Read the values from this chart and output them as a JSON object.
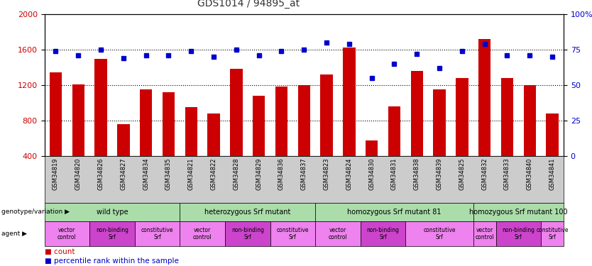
{
  "title": "GDS1014 / 94895_at",
  "samples": [
    "GSM34819",
    "GSM34820",
    "GSM34826",
    "GSM34827",
    "GSM34834",
    "GSM34835",
    "GSM34821",
    "GSM34822",
    "GSM34828",
    "GSM34829",
    "GSM34836",
    "GSM34837",
    "GSM34823",
    "GSM34824",
    "GSM34830",
    "GSM34831",
    "GSM34838",
    "GSM34839",
    "GSM34825",
    "GSM34832",
    "GSM34833",
    "GSM34840",
    "GSM34841"
  ],
  "counts": [
    1340,
    1210,
    1490,
    760,
    1150,
    1120,
    950,
    880,
    1380,
    1080,
    1180,
    1200,
    1320,
    1620,
    575,
    960,
    1360,
    1150,
    1280,
    1720,
    1280,
    1200,
    880
  ],
  "percentiles": [
    74,
    71,
    75,
    69,
    71,
    71,
    74,
    70,
    75,
    71,
    74,
    75,
    80,
    79,
    55,
    65,
    72,
    62,
    74,
    79,
    71,
    71,
    70
  ],
  "bar_color": "#cc0000",
  "dot_color": "#0000cc",
  "ylim_left": [
    400,
    2000
  ],
  "ylim_right": [
    0,
    100
  ],
  "yticks_left": [
    400,
    800,
    1200,
    1600,
    2000
  ],
  "yticks_right": [
    0,
    25,
    50,
    75,
    100
  ],
  "grid_values": [
    800,
    1200,
    1600
  ],
  "bar_width": 0.55,
  "tick_bg_color": "#cccccc",
  "geno_color": "#aaddaa",
  "geno_groups": [
    {
      "label": "wild type",
      "start": 0,
      "end": 5
    },
    {
      "label": "heterozygous Srf mutant",
      "start": 6,
      "end": 11
    },
    {
      "label": "homozygous Srf mutant 81",
      "start": 12,
      "end": 18
    },
    {
      "label": "homozygous Srf mutant 100",
      "start": 19,
      "end": 22
    }
  ],
  "agent_groups": [
    {
      "label": "vector\ncontrol",
      "start": 0,
      "end": 1,
      "color": "#ee82ee"
    },
    {
      "label": "non-binding\nSrf",
      "start": 2,
      "end": 3,
      "color": "#cc44cc"
    },
    {
      "label": "constitutive\nSrf",
      "start": 4,
      "end": 5,
      "color": "#ee82ee"
    },
    {
      "label": "vector\ncontrol",
      "start": 6,
      "end": 7,
      "color": "#ee82ee"
    },
    {
      "label": "non-binding\nSrf",
      "start": 8,
      "end": 9,
      "color": "#cc44cc"
    },
    {
      "label": "constitutive\nSrf",
      "start": 10,
      "end": 11,
      "color": "#ee82ee"
    },
    {
      "label": "vector\ncontrol",
      "start": 12,
      "end": 13,
      "color": "#ee82ee"
    },
    {
      "label": "non-binding\nSrf",
      "start": 14,
      "end": 15,
      "color": "#cc44cc"
    },
    {
      "label": "constitutive\nSrf",
      "start": 16,
      "end": 18,
      "color": "#ee82ee"
    },
    {
      "label": "vector\ncontrol",
      "start": 19,
      "end": 19,
      "color": "#ee82ee"
    },
    {
      "label": "non-binding\nSrf",
      "start": 20,
      "end": 21,
      "color": "#cc44cc"
    },
    {
      "label": "constitutive\nSrf",
      "start": 22,
      "end": 22,
      "color": "#ee82ee"
    }
  ],
  "label_left_color": "#cc0000",
  "label_right_color": "#0000cc",
  "title_color": "#333333"
}
